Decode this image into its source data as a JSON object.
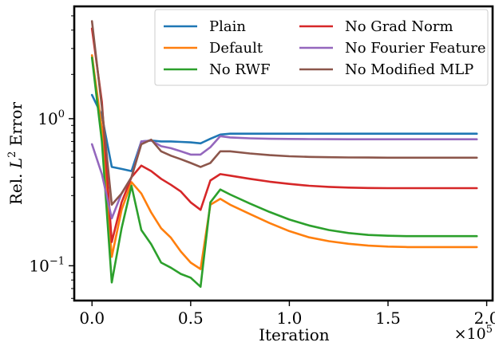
{
  "chart_data": {
    "type": "line",
    "title": "",
    "xlabel": "Iteration",
    "ylabel": "Rel. L² Error",
    "ylabel_main": "Rel. ",
    "ylabel_var": "L",
    "ylabel_sup": "2",
    "ylabel_tail": " Error",
    "x_multiplier": "×10",
    "x_multiplier_exp": "5",
    "xlim": [
      -0.09,
      2.03
    ],
    "ylim": [
      0.058,
      5.8
    ],
    "yscale": "log",
    "grid": false,
    "legend_position": "top-right",
    "x_ticks": [
      {
        "value": 0.0,
        "label": "0.0"
      },
      {
        "value": 0.5,
        "label": "0.5"
      },
      {
        "value": 1.0,
        "label": "1.0"
      },
      {
        "value": 1.5,
        "label": "1.5"
      },
      {
        "value": 2.0,
        "label": "2.0"
      }
    ],
    "y_ticks": [
      {
        "value": 1,
        "base": "10",
        "exp": "0"
      },
      {
        "value": 0.1,
        "base": "10",
        "exp": "−1"
      }
    ],
    "x": [
      0,
      0.05,
      0.1,
      0.15,
      0.2,
      0.25,
      0.3,
      0.35,
      0.4,
      0.45,
      0.5,
      0.55,
      0.6,
      0.65,
      0.7,
      0.8,
      0.9,
      1.0,
      1.1,
      1.2,
      1.3,
      1.4,
      1.5,
      1.6,
      1.7,
      1.8,
      1.9,
      1.95
    ],
    "series": [
      {
        "name": "Plain",
        "color": "#1f77b4",
        "values": [
          1.45,
          1.05,
          0.47,
          0.455,
          0.44,
          0.7,
          0.71,
          0.7,
          0.7,
          0.695,
          0.69,
          0.68,
          0.73,
          0.78,
          0.79,
          0.79,
          0.79,
          0.79,
          0.79,
          0.79,
          0.79,
          0.79,
          0.79,
          0.79,
          0.79,
          0.79,
          0.79,
          0.79
        ]
      },
      {
        "name": "Default",
        "color": "#ff7f0e",
        "values": [
          2.7,
          0.85,
          0.115,
          0.24,
          0.37,
          0.31,
          0.23,
          0.18,
          0.155,
          0.125,
          0.105,
          0.095,
          0.26,
          0.285,
          0.26,
          0.225,
          0.195,
          0.172,
          0.156,
          0.147,
          0.141,
          0.137,
          0.135,
          0.134,
          0.134,
          0.134,
          0.134,
          0.134
        ]
      },
      {
        "name": "No RWF",
        "color": "#2ca02c",
        "values": [
          2.6,
          0.7,
          0.077,
          0.18,
          0.35,
          0.175,
          0.14,
          0.105,
          0.097,
          0.088,
          0.083,
          0.072,
          0.27,
          0.33,
          0.305,
          0.265,
          0.232,
          0.206,
          0.188,
          0.175,
          0.167,
          0.162,
          0.16,
          0.159,
          0.159,
          0.159,
          0.159,
          0.159
        ]
      },
      {
        "name": "No Grad Norm",
        "color": "#d62728",
        "values": [
          4.1,
          1.3,
          0.145,
          0.27,
          0.4,
          0.48,
          0.44,
          0.39,
          0.355,
          0.32,
          0.27,
          0.24,
          0.38,
          0.42,
          0.41,
          0.39,
          0.373,
          0.36,
          0.35,
          0.344,
          0.34,
          0.338,
          0.337,
          0.337,
          0.337,
          0.337,
          0.337,
          0.337
        ]
      },
      {
        "name": "No Fourier Feature",
        "color": "#9467bd",
        "values": [
          0.67,
          0.42,
          0.21,
          0.31,
          0.4,
          0.7,
          0.71,
          0.65,
          0.63,
          0.6,
          0.57,
          0.57,
          0.64,
          0.76,
          0.745,
          0.735,
          0.73,
          0.728,
          0.726,
          0.725,
          0.724,
          0.724,
          0.724,
          0.724,
          0.724,
          0.724,
          0.724,
          0.724
        ]
      },
      {
        "name": "No Modified MLP",
        "color": "#8c564b",
        "values": [
          4.6,
          1.2,
          0.26,
          0.31,
          0.4,
          0.67,
          0.72,
          0.6,
          0.56,
          0.53,
          0.5,
          0.47,
          0.5,
          0.6,
          0.6,
          0.58,
          0.565,
          0.555,
          0.55,
          0.547,
          0.545,
          0.544,
          0.543,
          0.543,
          0.543,
          0.543,
          0.543,
          0.543
        ]
      }
    ]
  }
}
